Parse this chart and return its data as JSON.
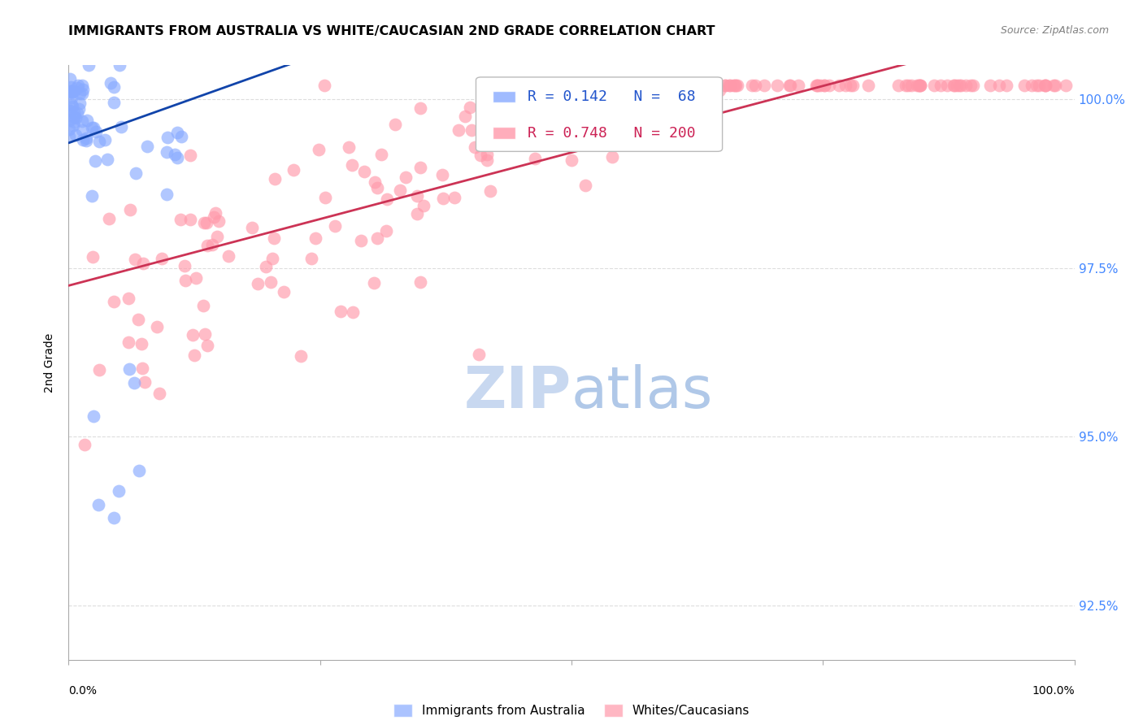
{
  "title": "IMMIGRANTS FROM AUSTRALIA VS WHITE/CAUCASIAN 2ND GRADE CORRELATION CHART",
  "source_text": "Source: ZipAtlas.com",
  "ylabel": "2nd Grade",
  "right_yticks": [
    1.0,
    0.975,
    0.95,
    0.925
  ],
  "right_ytick_labels": [
    "100.0%",
    "97.5%",
    "95.0%",
    "92.5%"
  ],
  "xlim": [
    0.0,
    1.0
  ],
  "ylim": [
    0.917,
    1.005
  ],
  "blue_color": "#88aaff",
  "pink_color": "#ff99aa",
  "blue_line_color": "#1144aa",
  "pink_line_color": "#cc3355",
  "grid_color": "#dddddd",
  "tick_label_color": "#4488ff",
  "watermark_zip_color": "#c8d8f0",
  "watermark_atlas_color": "#b0c8e8",
  "title_fontsize": 11.5,
  "source_fontsize": 9,
  "legend_r_color_blue": "#2255cc",
  "legend_r_color_pink": "#cc2255",
  "legend_blue_r": "0.142",
  "legend_blue_n": "68",
  "legend_pink_r": "0.748",
  "legend_pink_n": "200",
  "blue_n": 68,
  "pink_n": 200,
  "seed": 42
}
